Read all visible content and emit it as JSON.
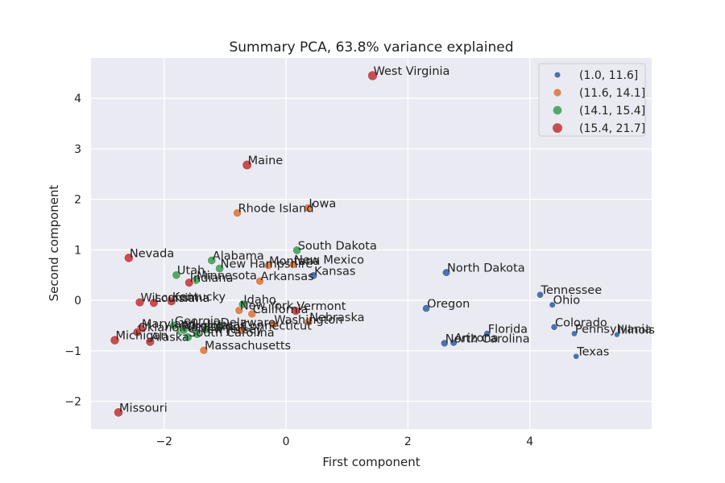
{
  "chart_data": {
    "type": "scatter",
    "title": "Summary PCA, 63.8% variance explained",
    "xlabel": "First component",
    "ylabel": "Second component",
    "xlim": [
      -3.2,
      6.0
    ],
    "ylim": [
      -2.55,
      4.8
    ],
    "xticks": [
      -2,
      0,
      2,
      4
    ],
    "yticks": [
      -2,
      -1,
      0,
      1,
      2,
      3,
      4
    ],
    "grid": true,
    "legend_position": "top-right",
    "groups": [
      {
        "name": "(1.0, 11.6]",
        "color": "#4c72b0"
      },
      {
        "name": "(11.6, 14.1]",
        "color": "#dd8452"
      },
      {
        "name": "(14.1, 15.4]",
        "color": "#55a868"
      },
      {
        "name": "(15.4, 21.7]",
        "color": "#c44e52"
      }
    ],
    "points": [
      {
        "label": "West Virginia",
        "x": 1.42,
        "y": 4.45,
        "group": 3,
        "size": 21.7
      },
      {
        "label": "Maine",
        "x": -0.64,
        "y": 2.68,
        "group": 3,
        "size": 20
      },
      {
        "label": "Rhode Island",
        "x": -0.8,
        "y": 1.73,
        "group": 1,
        "size": 14
      },
      {
        "label": "Iowa",
        "x": 0.36,
        "y": 1.83,
        "group": 1,
        "size": 13
      },
      {
        "label": "South Dakota",
        "x": 0.18,
        "y": 0.99,
        "group": 2,
        "size": 15
      },
      {
        "label": "Nevada",
        "x": -2.58,
        "y": 0.84,
        "group": 3,
        "size": 18
      },
      {
        "label": "Alabama",
        "x": -1.22,
        "y": 0.79,
        "group": 2,
        "size": 14.5
      },
      {
        "label": "New Hampshire",
        "x": -1.09,
        "y": 0.63,
        "group": 2,
        "size": 15
      },
      {
        "label": "Montana",
        "x": -0.29,
        "y": 0.69,
        "group": 1,
        "size": 12
      },
      {
        "label": "New Mexico",
        "x": 0.12,
        "y": 0.71,
        "group": 1,
        "size": 13
      },
      {
        "label": "Kansas",
        "x": 0.45,
        "y": 0.49,
        "group": 0,
        "size": 10
      },
      {
        "label": "Utah",
        "x": -1.8,
        "y": 0.5,
        "group": 2,
        "size": 14.5
      },
      {
        "label": "Minnesota",
        "x": -1.48,
        "y": 0.4,
        "group": 2,
        "size": 15
      },
      {
        "label": "Indiana",
        "x": -1.59,
        "y": 0.35,
        "group": 3,
        "size": 16
      },
      {
        "label": "Arkansas",
        "x": -0.43,
        "y": 0.38,
        "group": 1,
        "size": 13
      },
      {
        "label": "North Dakota",
        "x": 2.63,
        "y": 0.55,
        "group": 0,
        "size": 11
      },
      {
        "label": "Tennessee",
        "x": 4.17,
        "y": 0.11,
        "group": 0,
        "size": 7
      },
      {
        "label": "Ohio",
        "x": 4.37,
        "y": -0.09,
        "group": 0,
        "size": 5
      },
      {
        "label": "Oregon",
        "x": 2.3,
        "y": -0.16,
        "group": 0,
        "size": 10
      },
      {
        "label": "Wisconsin",
        "x": -2.4,
        "y": -0.04,
        "group": 3,
        "size": 17
      },
      {
        "label": "Louisiana",
        "x": -2.17,
        "y": -0.05,
        "group": 3,
        "size": 16
      },
      {
        "label": "Kentucky",
        "x": -1.88,
        "y": -0.02,
        "group": 3,
        "size": 16
      },
      {
        "label": "Idaho",
        "x": -0.71,
        "y": -0.08,
        "group": 2,
        "size": 14.5
      },
      {
        "label": "New York",
        "x": -0.77,
        "y": -0.2,
        "group": 1,
        "size": 13
      },
      {
        "label": "California",
        "x": -0.56,
        "y": -0.27,
        "group": 1,
        "size": 13
      },
      {
        "label": "Vermont",
        "x": 0.16,
        "y": -0.21,
        "group": 3,
        "size": 16
      },
      {
        "label": "Nebraska",
        "x": 0.37,
        "y": -0.43,
        "group": 1,
        "size": 13
      },
      {
        "label": "Washington",
        "x": -0.21,
        "y": -0.48,
        "group": 1,
        "size": 13
      },
      {
        "label": "Colorado",
        "x": 4.4,
        "y": -0.53,
        "group": 0,
        "size": 6
      },
      {
        "label": "Pennsylvania",
        "x": 4.73,
        "y": -0.66,
        "group": 0,
        "size": 4
      },
      {
        "label": "Illinois",
        "x": 5.43,
        "y": -0.68,
        "group": 0,
        "size": 3
      },
      {
        "label": "Florida",
        "x": 3.3,
        "y": -0.66,
        "group": 0,
        "size": 6
      },
      {
        "label": "North Carolina",
        "x": 2.6,
        "y": -0.85,
        "group": 0,
        "size": 9
      },
      {
        "label": "Arizona",
        "x": 2.75,
        "y": -0.84,
        "group": 0,
        "size": 8
      },
      {
        "label": "Texas",
        "x": 4.76,
        "y": -1.11,
        "group": 0,
        "size": 4
      },
      {
        "label": "Georgia",
        "x": -1.84,
        "y": -0.5,
        "group": 2,
        "size": 15
      },
      {
        "label": "Delaware",
        "x": -1.09,
        "y": -0.53,
        "group": 2,
        "size": 15
      },
      {
        "label": "Maryland",
        "x": -2.38,
        "y": -0.56,
        "group": 3,
        "size": 16
      },
      {
        "label": "Mississippi",
        "x": -1.73,
        "y": -0.61,
        "group": 2,
        "size": 15
      },
      {
        "label": "Virginia",
        "x": -1.68,
        "y": -0.59,
        "group": 2,
        "size": 15
      },
      {
        "label": "Hawaii",
        "x": -1.3,
        "y": -0.57,
        "group": 2,
        "size": 15
      },
      {
        "label": "New Jersey",
        "x": -1.46,
        "y": -0.67,
        "group": 2,
        "size": 15
      },
      {
        "label": "Connecticut",
        "x": -0.74,
        "y": -0.6,
        "group": 1,
        "size": 13
      },
      {
        "label": "Oklahoma",
        "x": -2.44,
        "y": -0.63,
        "group": 3,
        "size": 16
      },
      {
        "label": "South Carolina",
        "x": -1.61,
        "y": -0.73,
        "group": 2,
        "size": 15
      },
      {
        "label": "Michigan",
        "x": -2.81,
        "y": -0.79,
        "group": 3,
        "size": 18
      },
      {
        "label": "Alaska",
        "x": -2.23,
        "y": -0.82,
        "group": 3,
        "size": 17
      },
      {
        "label": "Massachusetts",
        "x": -1.35,
        "y": -0.99,
        "group": 1,
        "size": 13
      },
      {
        "label": "Missouri",
        "x": -2.75,
        "y": -2.22,
        "group": 3,
        "size": 18
      }
    ]
  }
}
